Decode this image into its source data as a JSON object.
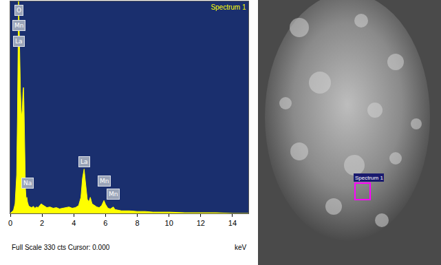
{
  "chart_data": {
    "type": "area",
    "title": "Spectrum 1",
    "x": [
      0,
      0.1,
      0.2,
      0.3,
      0.4,
      0.45,
      0.5,
      0.52,
      0.55,
      0.6,
      0.64,
      0.7,
      0.75,
      0.8,
      0.83,
      0.86,
      0.9,
      0.95,
      1.0,
      1.04,
      1.08,
      1.15,
      1.25,
      1.35,
      1.45,
      1.55,
      1.65,
      1.75,
      1.85,
      1.95,
      2.05,
      2.15,
      2.3,
      2.5,
      2.7,
      2.9,
      3.1,
      3.3,
      3.5,
      3.7,
      3.9,
      4.1,
      4.3,
      4.45,
      4.55,
      4.65,
      4.75,
      4.85,
      4.95,
      5.04,
      5.15,
      5.3,
      5.45,
      5.6,
      5.75,
      5.9,
      6.0,
      6.15,
      6.3,
      6.49,
      6.6,
      6.8,
      7.0,
      7.5,
      8,
      8.5,
      9,
      10,
      11,
      12,
      13,
      14,
      15
    ],
    "values": [
      0,
      2,
      5,
      15,
      60,
      150,
      330,
      330,
      300,
      220,
      190,
      150,
      160,
      190,
      196,
      170,
      90,
      40,
      20,
      25,
      18,
      12,
      10,
      9,
      11,
      8,
      10,
      9,
      12,
      15,
      13,
      11,
      9,
      10,
      8,
      9,
      7,
      8,
      9,
      10,
      8,
      9,
      12,
      25,
      55,
      69,
      45,
      22,
      18,
      25,
      15,
      12,
      10,
      9,
      12,
      20,
      14,
      8,
      7,
      10,
      6,
      5,
      4,
      4,
      3,
      3,
      2,
      2,
      1,
      1,
      1,
      0,
      0
    ],
    "color": "#ffff00",
    "xlim": [
      0,
      15
    ],
    "xticks": [
      0,
      2,
      4,
      6,
      8,
      10,
      12,
      14
    ],
    "ylim": [
      0,
      330
    ],
    "x_label": "keV",
    "footer": "Full Scale 330 cts Cursor: 0.000",
    "tick_labels": "x",
    "grid": false,
    "annotations": [
      {
        "text": "O",
        "x": 0.55,
        "y": 316
      },
      {
        "text": "Mn",
        "x": 0.55,
        "y": 292
      },
      {
        "text": "La",
        "x": 0.55,
        "y": 268
      },
      {
        "text": "Na",
        "x": 1.1,
        "y": 47
      },
      {
        "text": "La",
        "x": 4.65,
        "y": 80
      },
      {
        "text": "Mn",
        "x": 5.9,
        "y": 50
      },
      {
        "text": "Mn",
        "x": 6.5,
        "y": 30
      }
    ]
  },
  "image": {
    "marker_label": "Spectrum 1"
  }
}
